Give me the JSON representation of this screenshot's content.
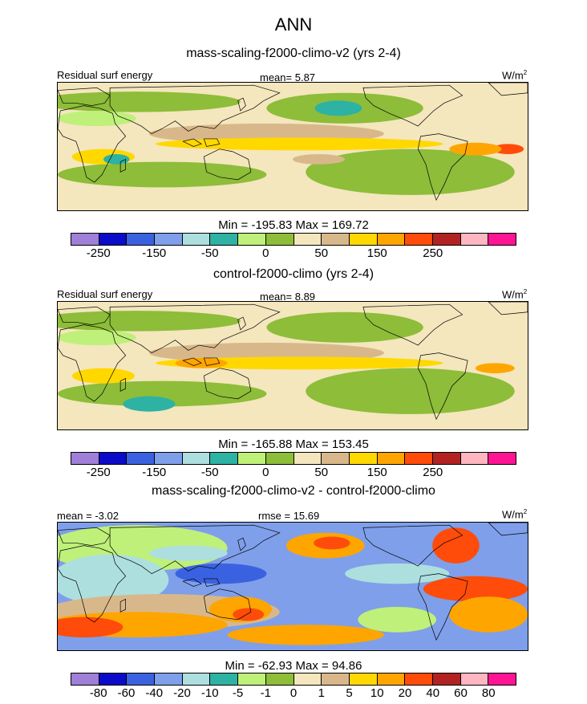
{
  "figure": {
    "title": "ANN"
  },
  "panels": [
    {
      "subtitle": "mass-scaling-f2000-climo-v2 (yrs 2-4)",
      "left_label": "Residual surf energy",
      "center_label": "mean=   5.87",
      "units": "W/m",
      "units_sup": "2",
      "minmax": "Min = -195.83 Max = 169.72",
      "colorbar_labels": [
        "-250",
        "-150",
        "-50",
        "0",
        "50",
        "150",
        "250"
      ],
      "colors": [
        "#9f7fd8",
        "#0b0bc9",
        "#3a62e0",
        "#7f9fea",
        "#addfdf",
        "#2db2a4",
        "#bff07a",
        "#8dbd39",
        "#f4e6bd",
        "#d8b88a",
        "#ffd800",
        "#ffa500",
        "#ff4c0a",
        "#b22222",
        "#ffb6c1",
        "#ff1493"
      ],
      "field": "base1"
    },
    {
      "subtitle": "control-f2000-climo (yrs 2-4)",
      "left_label": "Residual surf energy",
      "center_label": "mean=   8.89",
      "units": "W/m",
      "units_sup": "2",
      "minmax": "Min = -165.88 Max = 153.45",
      "colorbar_labels": [
        "-250",
        "-150",
        "-50",
        "0",
        "50",
        "150",
        "250"
      ],
      "colors": [
        "#9f7fd8",
        "#0b0bc9",
        "#3a62e0",
        "#7f9fea",
        "#addfdf",
        "#2db2a4",
        "#bff07a",
        "#8dbd39",
        "#f4e6bd",
        "#d8b88a",
        "#ffd800",
        "#ffa500",
        "#ff4c0a",
        "#b22222",
        "#ffb6c1",
        "#ff1493"
      ],
      "field": "base2"
    },
    {
      "subtitle": "mass-scaling-f2000-climo-v2 - control-f2000-climo",
      "left_label": "mean =  -3.02",
      "center_label": "rmse =  15.69",
      "units": "W/m",
      "units_sup": "2",
      "minmax": "Min = -62.93 Max = 94.86",
      "colorbar_labels": [
        "-80",
        "-60",
        "-40",
        "-20",
        "-10",
        "-5",
        "-1",
        "0",
        "1",
        "5",
        "10",
        "20",
        "40",
        "60",
        "80"
      ],
      "colors": [
        "#9f7fd8",
        "#0b0bc9",
        "#3a62e0",
        "#7f9fea",
        "#addfdf",
        "#2db2a4",
        "#bff07a",
        "#8dbd39",
        "#f4e6bd",
        "#d8b88a",
        "#ffd800",
        "#ffa500",
        "#ff4c0a",
        "#b22222",
        "#ffb6c1",
        "#ff1493"
      ],
      "field": "diff"
    }
  ]
}
